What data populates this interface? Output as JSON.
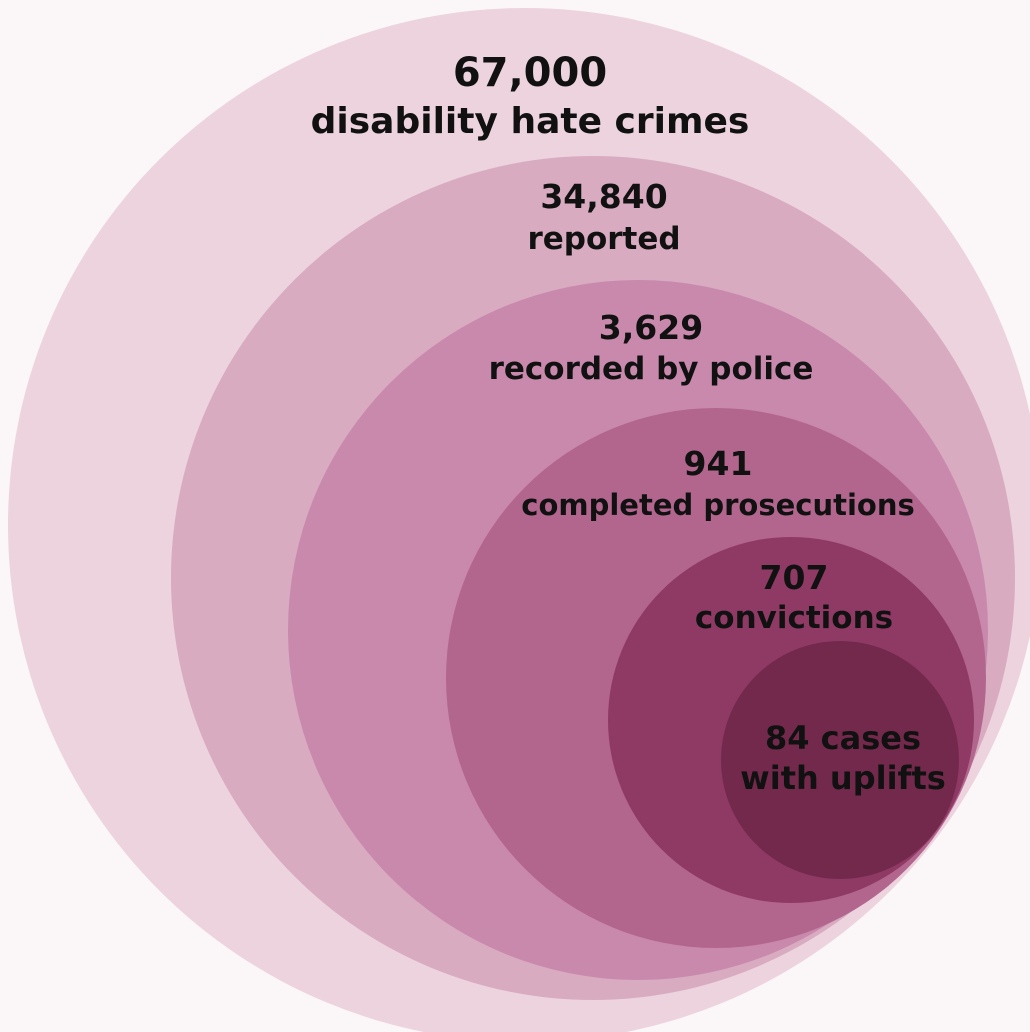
{
  "stages": [
    {
      "value": "67,000",
      "label": "disability hate crimes",
      "color": "#ecd3de"
    },
    {
      "value": "34,840",
      "label": "reported",
      "color": "#d8abc0"
    },
    {
      "value": "3,629",
      "label": "recorded by police",
      "color": "#c989ac"
    },
    {
      "value": "941",
      "label": "completed prosecutions",
      "color": "#b2668d"
    },
    {
      "value": "707",
      "label": "convictions",
      "color": "#8f3a64"
    },
    {
      "value": "84 cases",
      "label": "with uplifts",
      "color": "#73294c"
    }
  ]
}
